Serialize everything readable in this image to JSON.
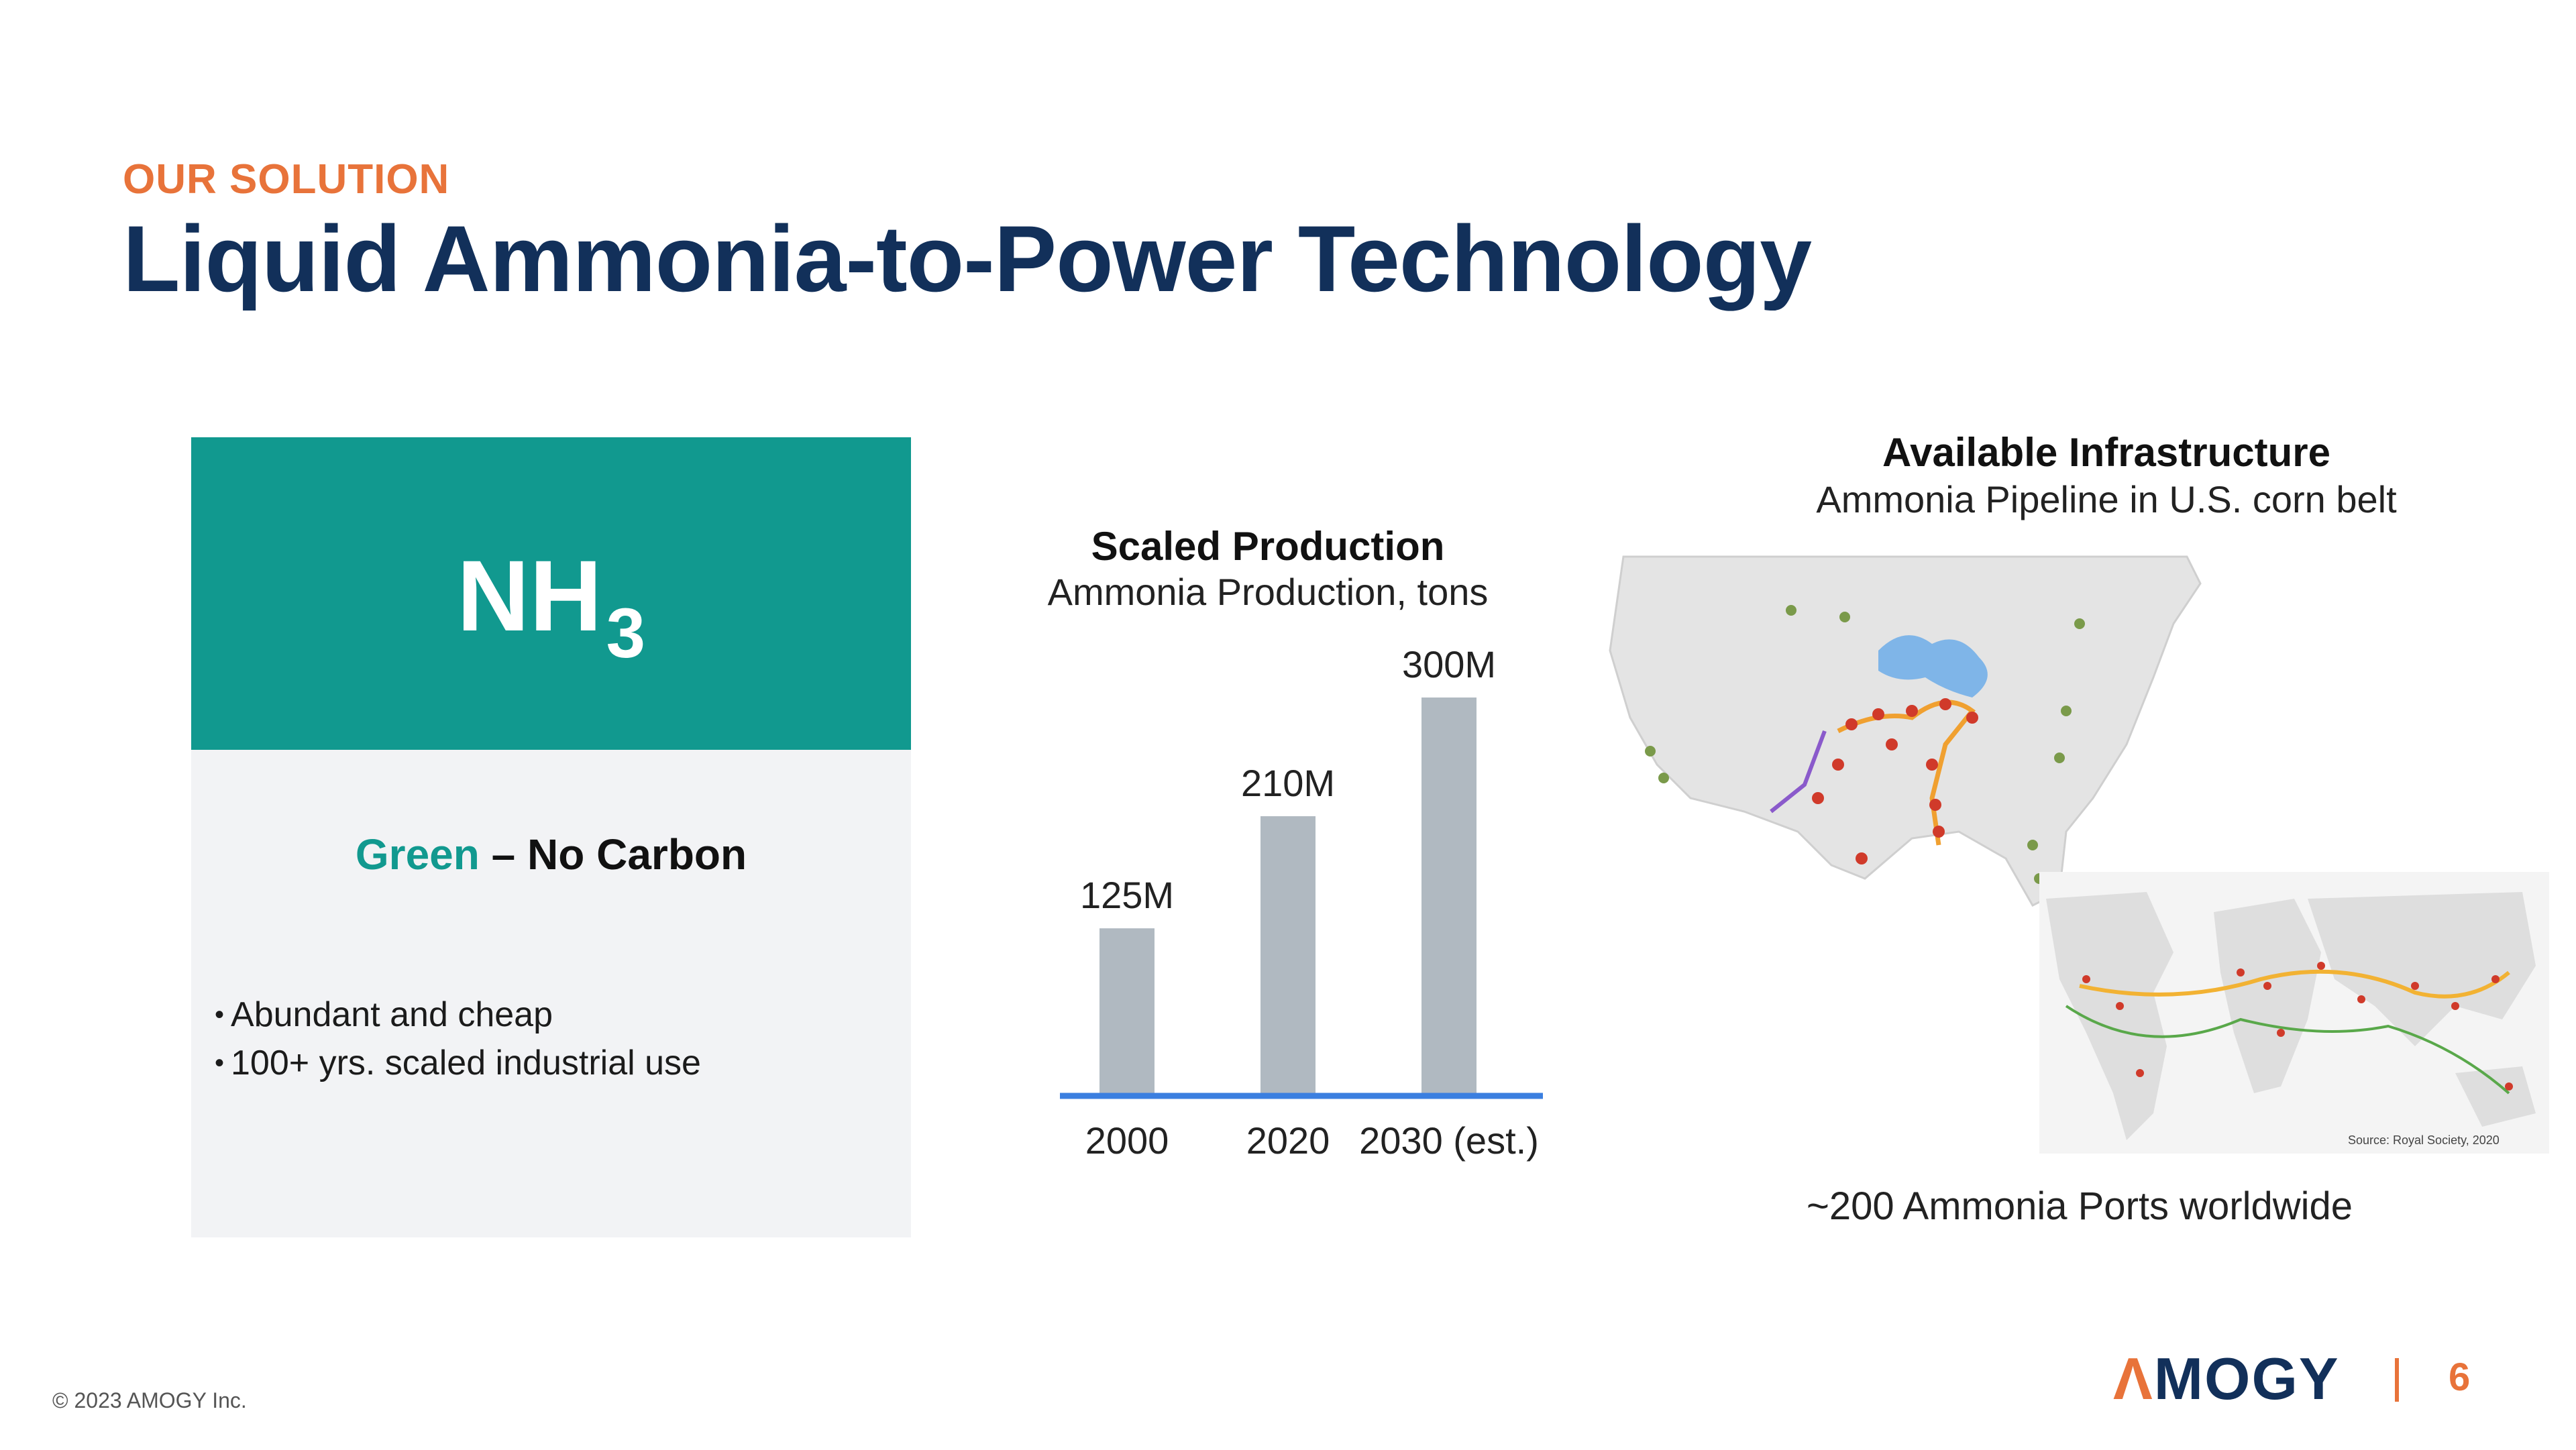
{
  "header": {
    "eyebrow": "OUR SOLUTION",
    "title": "Liquid Ammonia-to-Power Technology"
  },
  "card": {
    "formula_main": "NH",
    "formula_sub": "3",
    "tagline_highlight": "Green",
    "tagline_rest": " – No Carbon",
    "bullets": [
      "Abundant and cheap",
      "100+ yrs. scaled industrial use"
    ]
  },
  "chart_data": {
    "type": "bar",
    "title": "Scaled Production",
    "subtitle": "Ammonia Production, tons",
    "categories": [
      "2000",
      "2020",
      "2030 (est.)"
    ],
    "values": [
      125000000,
      210000000,
      300000000
    ],
    "value_labels": [
      "125M",
      "210M",
      "300M"
    ],
    "ylim": [
      0,
      300000000
    ],
    "bar_color": "#b0b9c1",
    "axis_color": "#3b7fe0",
    "grid": false
  },
  "infrastructure": {
    "title": "Available Infrastructure",
    "subtitle": "Ammonia Pipeline in U.S. corn belt",
    "map_source": "Source: Royal Society, 2020",
    "ports_caption": "~200 Ammonia Ports worldwide"
  },
  "footer": {
    "copyright": "© 2023 AMOGY Inc.",
    "logo_a": "Λ",
    "logo_rest": "MOGY",
    "page_number": "6"
  },
  "colors": {
    "accent_orange": "#e8733a",
    "title_navy": "#12305a",
    "teal": "#11998f"
  }
}
